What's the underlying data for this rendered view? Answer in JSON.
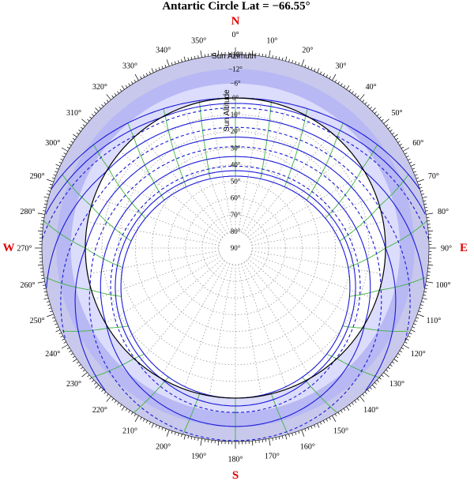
{
  "chart_data": {
    "type": "polar-sunpath",
    "title": "Antartic Circle  Lat = −66.55°",
    "latitude": -66.55,
    "azimuth_axis_label": "Sun Azimuth",
    "altitude_axis_label": "Sun Altitude",
    "compass": {
      "north": "N",
      "east": "E",
      "south": "S",
      "west": "W"
    },
    "azimuth_ticks": [
      0,
      10,
      20,
      30,
      40,
      50,
      60,
      70,
      80,
      90,
      100,
      110,
      120,
      130,
      140,
      150,
      160,
      170,
      180,
      190,
      200,
      210,
      220,
      230,
      240,
      250,
      260,
      270,
      280,
      290,
      300,
      310,
      320,
      330,
      340,
      350
    ],
    "azimuth_tick_labels": [
      "0°",
      "10°",
      "20°",
      "30°",
      "40°",
      "50°",
      "60°",
      "70°",
      "80°",
      "90°",
      "100°",
      "110°",
      "120°",
      "130°",
      "140°",
      "150°",
      "160°",
      "170°",
      "180°",
      "190°",
      "200°",
      "210°",
      "220°",
      "230°",
      "240°",
      "250°",
      "260°",
      "270°",
      "280°",
      "290°",
      "300°",
      "310°",
      "320°",
      "330°",
      "340°",
      "350°"
    ],
    "altitude_ticks": [
      -18,
      -12,
      -6,
      0,
      10,
      20,
      30,
      40,
      50,
      60,
      70,
      80,
      90
    ],
    "altitude_tick_labels": [
      "−18°",
      "−12°",
      "−6°",
      "0°",
      "10°",
      "20°",
      "30°",
      "40°",
      "50°",
      "60°",
      "70°",
      "80°",
      "90°"
    ],
    "altitude_range": [
      -18,
      90
    ],
    "twilight_bands": [
      {
        "from": -18,
        "to": -12,
        "color": "#c8c8ec"
      },
      {
        "from": -12,
        "to": -6,
        "color": "#b8b8f4"
      },
      {
        "from": -6,
        "to": 0,
        "color": "#dcdcfc"
      }
    ],
    "declinations": [
      {
        "dec": -23.44,
        "style": "solid",
        "color": "#1a1ad8"
      },
      {
        "dec": -20.2,
        "style": "solid",
        "color": "#1a1ad8"
      },
      {
        "dec": -11.7,
        "style": "solid",
        "color": "#1a1ad8"
      },
      {
        "dec": 0,
        "style": "solid",
        "color": "#1a1ad8"
      },
      {
        "dec": 11.7,
        "style": "solid",
        "color": "#1a1ad8"
      },
      {
        "dec": 20.2,
        "style": "solid",
        "color": "#1a1ad8"
      },
      {
        "dec": 23.44,
        "style": "solid",
        "color": "#1a1ad8"
      },
      {
        "dec": -17.5,
        "style": "dashed",
        "color": "#1a1ad8"
      },
      {
        "dec": -5.8,
        "style": "dashed",
        "color": "#1a1ad8"
      },
      {
        "dec": 5.8,
        "style": "dashed",
        "color": "#1a1ad8"
      },
      {
        "dec": 17.5,
        "style": "dashed",
        "color": "#1a1ad8"
      }
    ],
    "hour_lines_hours": [
      0,
      1,
      2,
      3,
      4,
      5,
      6,
      7,
      8,
      9,
      10,
      11,
      12,
      13,
      14,
      15,
      16,
      17,
      18,
      19,
      20,
      21,
      22,
      23
    ],
    "hour_line_color": "#3cb43c",
    "horizon_color": "#000000",
    "grid": true
  }
}
